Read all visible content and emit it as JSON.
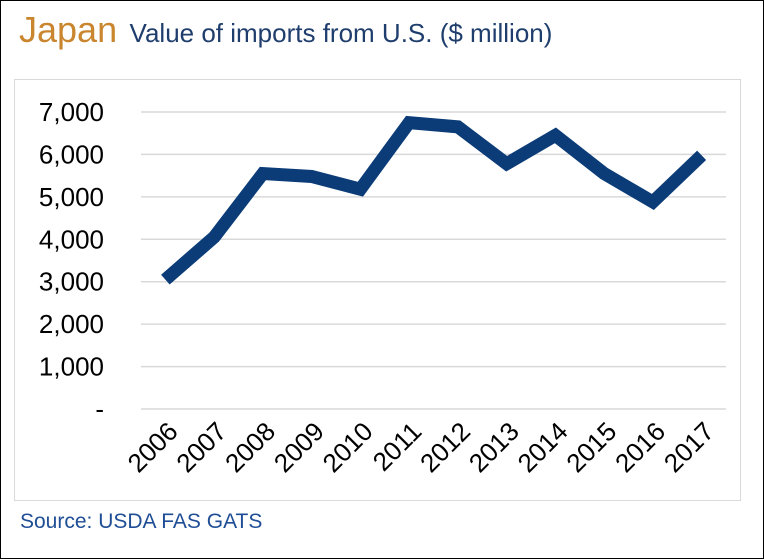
{
  "header": {
    "country": "Japan",
    "subtitle": "Value of imports from U.S. ($ million)"
  },
  "footer": {
    "source": "Source: USDA FAS GATS"
  },
  "colors": {
    "country_title": "#C9862E",
    "subtitle": "#1F3E6D",
    "line": "#0B3C78",
    "gridline": "#d9d9d9",
    "source": "#1F4E96"
  },
  "chart_data": {
    "type": "line",
    "title": "Value of imports from U.S. ($ million)",
    "xlabel": "",
    "ylabel": "",
    "categories": [
      "2006",
      "2007",
      "2008",
      "2009",
      "2010",
      "2011",
      "2012",
      "2013",
      "2014",
      "2015",
      "2016",
      "2017"
    ],
    "series": [
      {
        "values": [
          3050,
          4050,
          5550,
          5480,
          5180,
          6750,
          6650,
          5780,
          6450,
          5550,
          4880,
          5980
        ]
      }
    ],
    "ylim": [
      0,
      7000
    ],
    "yticks": [
      0,
      1000,
      2000,
      3000,
      4000,
      5000,
      6000,
      7000
    ],
    "ytick_labels": [
      "-",
      "1,000",
      "2,000",
      "3,000",
      "4,000",
      "5,000",
      "6,000",
      "7,000"
    ],
    "grid": true,
    "legend": "none"
  }
}
